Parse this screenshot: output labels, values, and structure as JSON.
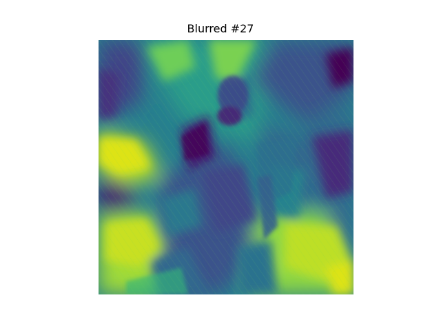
{
  "figure": {
    "title": "Blurred #27"
  },
  "image": {
    "content": "blurred-heatmap-image",
    "colormap": "viridis",
    "colors": {
      "dark_purple": "#45136f",
      "deep_blue": "#3b528b",
      "teal": "#21918c",
      "green": "#35b779",
      "yellow_green": "#b5de2b",
      "yellow": "#dde318"
    }
  }
}
